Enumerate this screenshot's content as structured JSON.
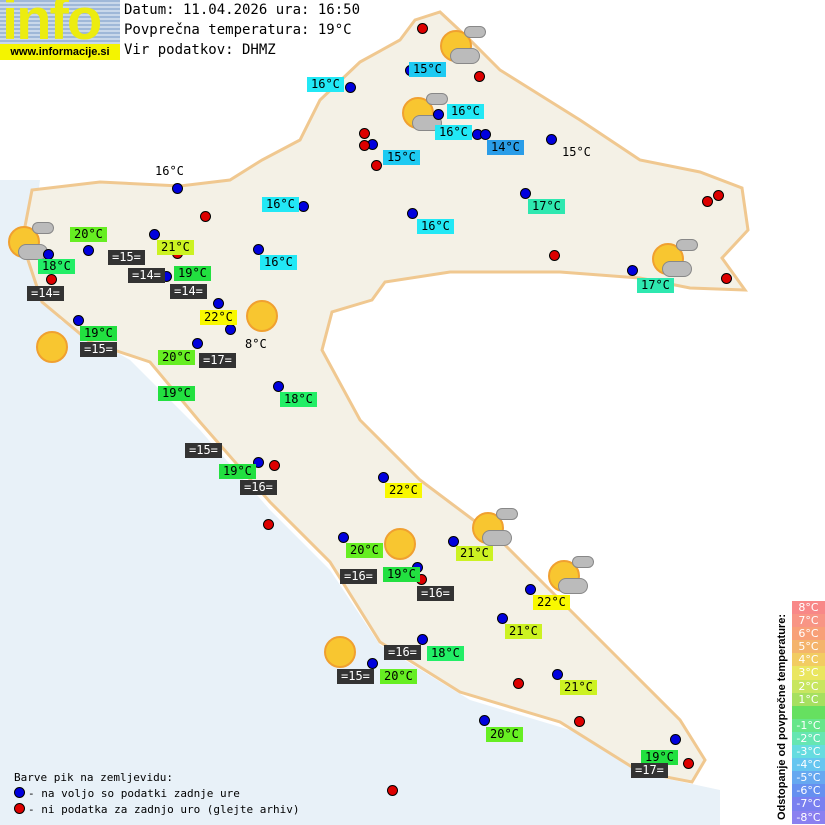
{
  "logo": {
    "text": "info",
    "url": "www.informacije.si"
  },
  "header": {
    "date_line": "Datum: 11.04.2026 ura: 16:50",
    "avg_line": "Povprečna temperatura: 19°C",
    "source_line": "Vir podatkov: DHMZ"
  },
  "colors": {
    "t14": "#2a9de8",
    "t15": "#1ecaf2",
    "t16": "#22e8f5",
    "t17": "#2ee8b0",
    "t18": "#22ee66",
    "t19": "#22e040",
    "t20": "#66ee22",
    "t21": "#ccf222",
    "t22": "#f8f800",
    "sea": "#333333",
    "available": "#0000dd",
    "missing": "#dd0000"
  },
  "land_labels": [
    "15°C",
    "16°C",
    "16°C",
    "16°C",
    "14°C",
    "15°C",
    "15°C",
    "16°C",
    "16°C",
    "17°C",
    "16°C",
    "20°C",
    "21°C",
    "16°C",
    "18°C",
    "19°C",
    "22°C",
    "8°C",
    "19°C",
    "20°C",
    "19°C",
    "18°C",
    "19°C",
    "22°C",
    "20°C",
    "21°C",
    "19°C",
    "22°C",
    "21°C",
    "18°C",
    "20°C",
    "21°C",
    "20°C",
    "19°C",
    "17°C"
  ],
  "sea_labels": [
    "=15=",
    "=14=",
    "=14=",
    "=14=",
    "=15=",
    "=17=",
    "=15=",
    "=16=",
    "=16=",
    "=16=",
    "=16=",
    "=15=",
    "=17="
  ],
  "weather_icons": [
    "partly-cloudy",
    "partly-cloudy",
    "partly-cloudy",
    "partly-cloudy",
    "partly-cloudy",
    "partly-cloudy",
    "sunny",
    "sunny",
    "sunny",
    "sunny"
  ],
  "legend": {
    "title": "Barve pik na zemljevidu:",
    "blue": "- na voljo so podatki zadnje ure",
    "red": "- ni podatka za zadnjo uro (glejte arhiv)"
  },
  "colorbar": {
    "title": "Odstopanje od povprečne temperature:",
    "labels": [
      "8°C",
      "7°C",
      "6°C",
      "5°C",
      "4°C",
      "3°C",
      "2°C",
      "1°C",
      "",
      "-1°C",
      "-2°C",
      "-3°C",
      "-4°C",
      "-5°C",
      "-6°C",
      "-7°C",
      "-8°C"
    ],
    "colors": [
      "#f88888",
      "#f89585",
      "#f8a078",
      "#f4b46c",
      "#f2cc62",
      "#eae660",
      "#c8e660",
      "#a6e060",
      "#66e060",
      "#66e68a",
      "#66e6b2",
      "#66dce0",
      "#66c6f0",
      "#66a8f0",
      "#6690f0",
      "#7a80f0",
      "#8a80f0"
    ]
  }
}
